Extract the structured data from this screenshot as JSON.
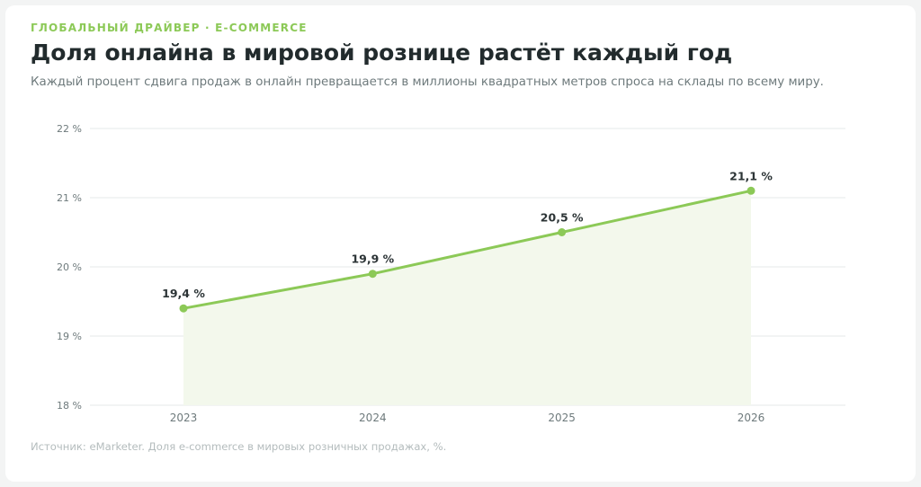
{
  "header": {
    "eyebrow": "ГЛОБАЛЬНЫЙ ДРАЙВЕР · E-COMMERCE",
    "title": "Доля онлайна в мировой рознице растёт каждый год",
    "subtitle": "Каждый процент сдвига продаж в онлайн превращается в миллионы квадратных метров спроса на склады по всему миру."
  },
  "footer": {
    "source": "Источник: eMarketer. Доля e-commerce в мировых розничных продажах, %."
  },
  "colors": {
    "accent": "#8cc957",
    "area_fill": "#f3f8ec",
    "grid": "#e6e9e9"
  },
  "chart_data": {
    "type": "line",
    "title": "Доля онлайна в мировой рознице растёт каждый год",
    "xlabel": "",
    "ylabel": "",
    "categories": [
      "2023",
      "2024",
      "2025",
      "2026"
    ],
    "series": [
      {
        "values": [
          19.4,
          19.9,
          20.5,
          21.1
        ],
        "labels": [
          "19,4 %",
          "19,9 %",
          "20,5 %",
          "21,1 %"
        ]
      }
    ],
    "ylim": [
      18,
      22
    ],
    "yticks": [
      18,
      19,
      20,
      21,
      22
    ],
    "ytick_labels": [
      "18 %",
      "19 %",
      "20 %",
      "21 %",
      "22 %"
    ],
    "grid": true,
    "area_fill": true,
    "legend": "none"
  }
}
